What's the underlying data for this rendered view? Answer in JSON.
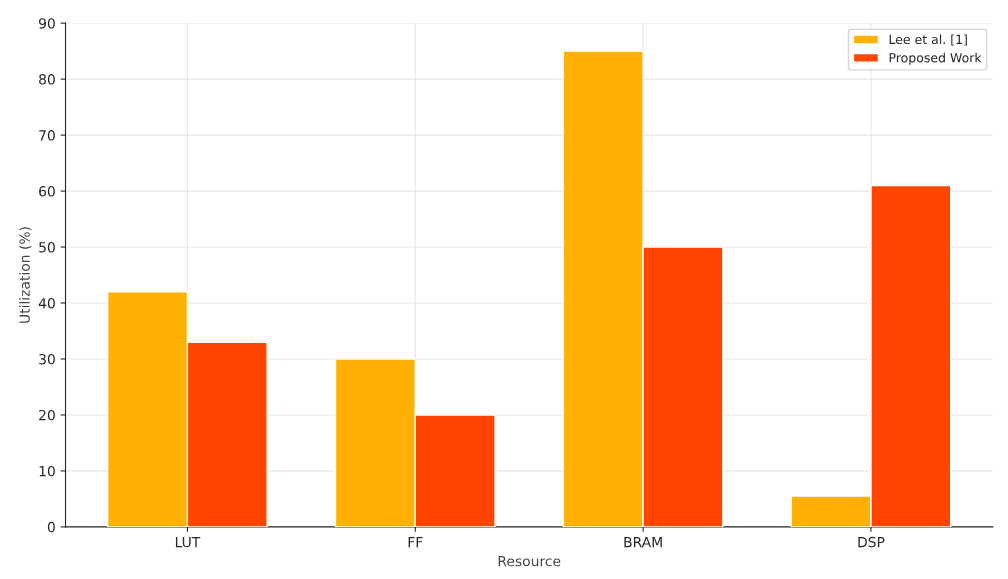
{
  "chart_data": {
    "type": "bar",
    "xlabel": "Resource",
    "ylabel": "Utilization (%)",
    "categories": [
      "LUT",
      "FF",
      "BRAM",
      "DSP"
    ],
    "series": [
      {
        "name": "Lee et al. [1]",
        "color": "#ffb000",
        "values": [
          42,
          30,
          85,
          5.5
        ]
      },
      {
        "name": "Proposed Work",
        "color": "#ff4500",
        "values": [
          33,
          20,
          50,
          61
        ]
      }
    ],
    "ylim": [
      0,
      90
    ],
    "yticks": [
      0,
      10,
      20,
      30,
      40,
      50,
      60,
      70,
      80,
      90
    ],
    "grid": true,
    "legend": "top right"
  }
}
